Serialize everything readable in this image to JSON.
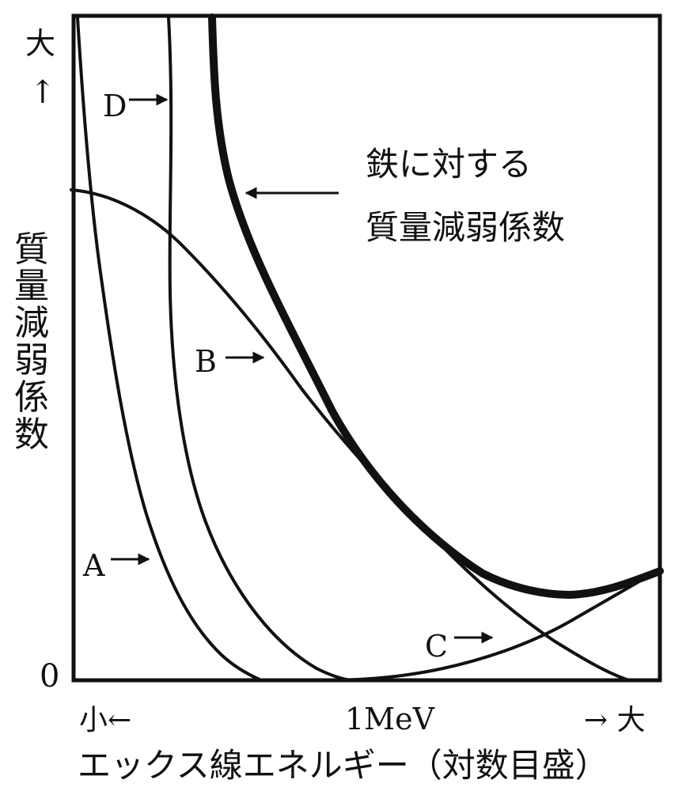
{
  "axes": {
    "y_top_label": "大",
    "y_arrow": "↑",
    "y_title_chars": [
      "質",
      "量",
      "減",
      "弱",
      "係",
      "数"
    ],
    "zero_label": "0",
    "x_small_label": "小←",
    "x_mid_label": "1MeV",
    "x_large_label": "→ 大",
    "x_title": "エックス線エネルギー（対数目盛）"
  },
  "annotation": {
    "line1": "鉄に対する",
    "line2": "質量減弱係数"
  },
  "curves": [
    {
      "id": "A",
      "label": "A"
    },
    {
      "id": "B",
      "label": "B"
    },
    {
      "id": "C",
      "label": "C"
    },
    {
      "id": "D",
      "label": "D"
    }
  ]
}
